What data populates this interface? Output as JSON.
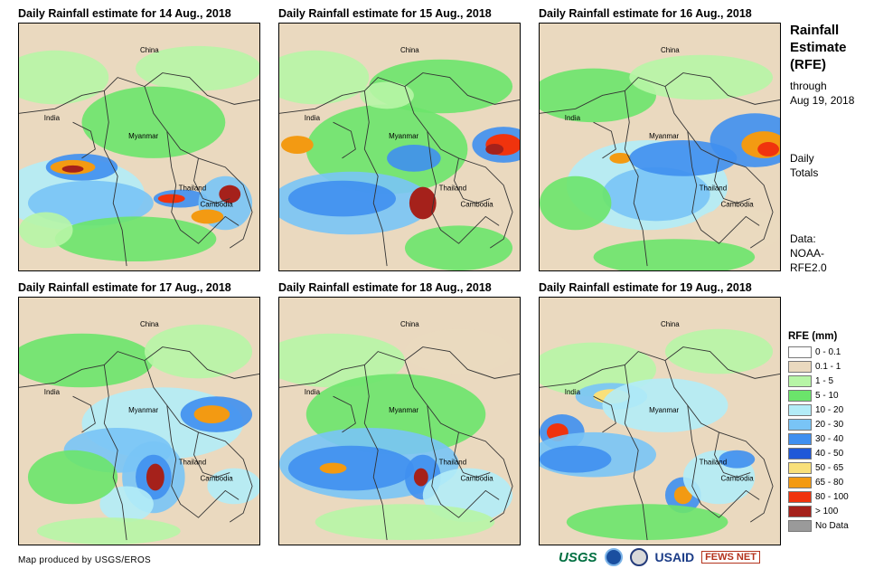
{
  "panels": [
    {
      "title": "Daily Rainfall estimate for 14 Aug., 2018",
      "labels": {
        "china": "China",
        "india": "India",
        "myanmar": "Myanmar",
        "thailand": "Thailand",
        "cambodia": "Cambodia"
      }
    },
    {
      "title": "Daily Rainfall estimate for 15 Aug., 2018",
      "labels": {
        "china": "China",
        "india": "India",
        "myanmar": "Myanmar",
        "thailand": "Thailand",
        "cambodia": "Cambodia"
      }
    },
    {
      "title": "Daily Rainfall estimate for 16 Aug., 2018",
      "labels": {
        "china": "China",
        "india": "India",
        "myanmar": "Myanmar",
        "thailand": "Thailand",
        "cambodia": "Cambodia"
      }
    },
    {
      "title": "Daily Rainfall estimate for 17 Aug., 2018",
      "labels": {
        "china": "China",
        "india": "India",
        "myanmar": "Myanmar",
        "thailand": "Thailand",
        "cambodia": "Cambodia"
      }
    },
    {
      "title": "Daily Rainfall estimate for 18 Aug., 2018",
      "labels": {
        "china": "China",
        "india": "India",
        "myanmar": "Myanmar",
        "thailand": "Thailand",
        "cambodia": "Cambodia"
      }
    },
    {
      "title": "Daily Rainfall estimate for 19 Aug., 2018",
      "labels": {
        "china": "China",
        "india": "India",
        "myanmar": "Myanmar",
        "thailand": "Thailand",
        "cambodia": "Cambodia"
      }
    }
  ],
  "sidebar": {
    "title_line1": "Rainfall",
    "title_line2": "Estimate",
    "title_line3": "(RFE)",
    "through_label": "through",
    "through_date": "Aug 19, 2018",
    "totals_line1": "Daily",
    "totals_line2": "Totals",
    "data_line1": "Data:",
    "data_line2": "NOAA-",
    "data_line3": "RFE2.0"
  },
  "legend": {
    "title": "RFE (mm)",
    "items": [
      {
        "label": "0 - 0.1",
        "color": "#ffffff"
      },
      {
        "label": "0.1 - 1",
        "color": "#ead9bf"
      },
      {
        "label": "1 - 5",
        "color": "#b7f5a6"
      },
      {
        "label": "5 - 10",
        "color": "#6be46b"
      },
      {
        "label": "10 - 20",
        "color": "#b3ecf7"
      },
      {
        "label": "20 - 30",
        "color": "#79c4f6"
      },
      {
        "label": "30 - 40",
        "color": "#3f8ff0"
      },
      {
        "label": "40 - 50",
        "color": "#1f58d8"
      },
      {
        "label": "50 - 65",
        "color": "#f9e07a"
      },
      {
        "label": "65 - 80",
        "color": "#f39a12"
      },
      {
        "label": "80 - 100",
        "color": "#f0330d"
      },
      {
        "label": "> 100",
        "color": "#a5211b"
      },
      {
        "label": "No Data",
        "color": "#9a9a9a"
      }
    ]
  },
  "credit": "Map produced by USGS/EROS",
  "logos": {
    "usgs": "USGS",
    "usaid": "USAID",
    "fews": "FEWS NET"
  }
}
